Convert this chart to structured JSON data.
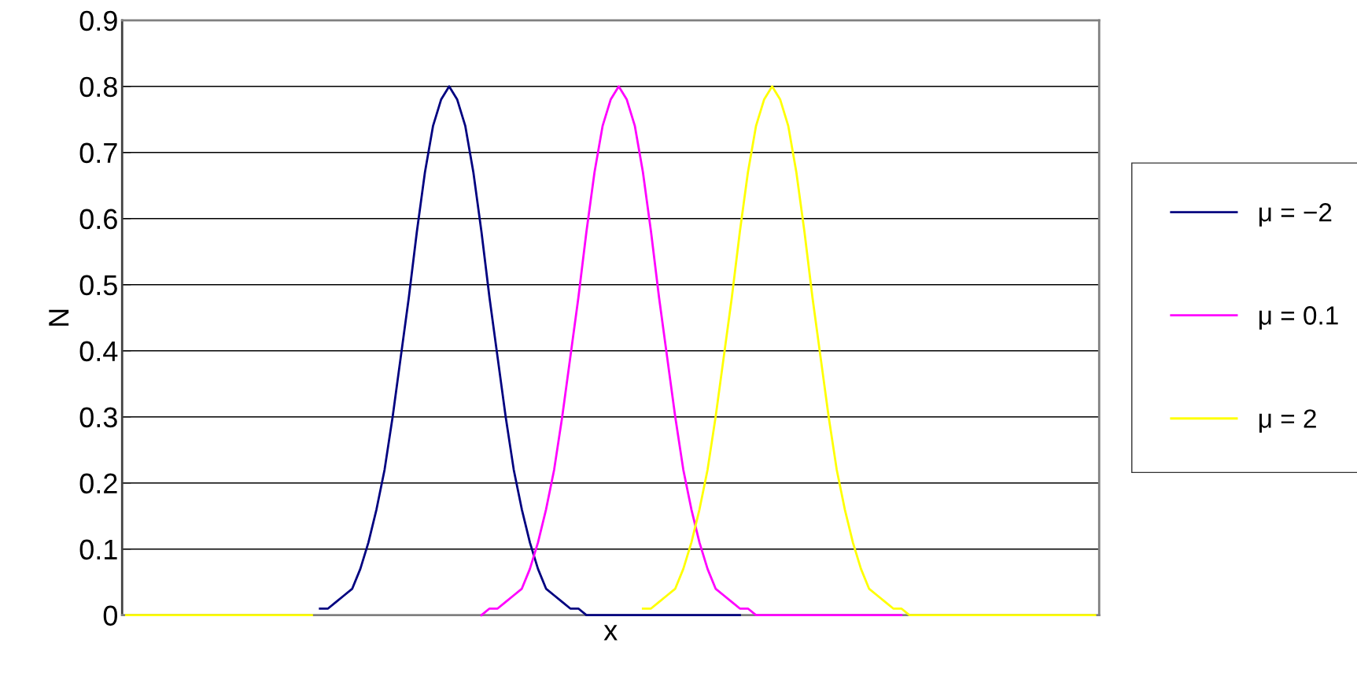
{
  "chart_data": {
    "type": "line",
    "xlabel": "x",
    "ylabel": "N",
    "ylim": [
      0,
      0.9
    ],
    "yticks": [
      0,
      0.1,
      0.2,
      0.3,
      0.4,
      0.5,
      0.6,
      0.7,
      0.8,
      0.9
    ],
    "grid": "y",
    "legend": "right",
    "tick_labels": "y",
    "marker": "none",
    "line_style": "solid",
    "categories": [
      null,
      null,
      null,
      null,
      null,
      null,
      null,
      null,
      null,
      null,
      null,
      null,
      null,
      null,
      null,
      null,
      null,
      null,
      null,
      null,
      null,
      null,
      null,
      null,
      null,
      null,
      null,
      null,
      null,
      null,
      null,
      null,
      null,
      null,
      null,
      null,
      null,
      null,
      null,
      null,
      null,
      null,
      null,
      null,
      null,
      null,
      null,
      null,
      null,
      null,
      null,
      null,
      null,
      null,
      null,
      null,
      null,
      null,
      null,
      null,
      null,
      null,
      null,
      null,
      null,
      null,
      null,
      null,
      null,
      null,
      null,
      null,
      null,
      null,
      null,
      null,
      null,
      null,
      null,
      null,
      null,
      null,
      null,
      null,
      null,
      null,
      null,
      null,
      null,
      null,
      null,
      null,
      null,
      null,
      null,
      null,
      null,
      null,
      null,
      null,
      null,
      null,
      null,
      null,
      null,
      null,
      null,
      null,
      null,
      null,
      null,
      null,
      null,
      null,
      null,
      null,
      null,
      null,
      null,
      null,
      null
    ],
    "series": [
      {
        "name": "μ = −2",
        "color": "#000080",
        "values": [
          null,
          null,
          null,
          null,
          null,
          null,
          null,
          null,
          null,
          null,
          null,
          null,
          null,
          null,
          null,
          null,
          null,
          null,
          null,
          null,
          null,
          null,
          null,
          null,
          0.01,
          0.01,
          0.02,
          0.03,
          0.04,
          0.07,
          0.11,
          0.16,
          0.22,
          0.3,
          0.39,
          0.48,
          0.58,
          0.67,
          0.74,
          0.78,
          0.8,
          0.78,
          0.74,
          0.67,
          0.58,
          0.48,
          0.39,
          0.3,
          0.22,
          0.16,
          0.11,
          0.07,
          0.04,
          0.03,
          0.02,
          0.01,
          0.01,
          0,
          0,
          0,
          0,
          0,
          0,
          0,
          0,
          0,
          0,
          0,
          0,
          0,
          0,
          0,
          0,
          0,
          0,
          0,
          0,
          null,
          null,
          null,
          null,
          null,
          null,
          null,
          null,
          null,
          null,
          null,
          null,
          null,
          null,
          null,
          null,
          null,
          null,
          null,
          null,
          null,
          null,
          null,
          null,
          null,
          null,
          null,
          null,
          null,
          null,
          null,
          null,
          null,
          null,
          null,
          null,
          null,
          null,
          null,
          null,
          null,
          null,
          null,
          null
        ]
      },
      {
        "name": "μ = 0.1",
        "color": "#ff00ff",
        "values": [
          null,
          null,
          null,
          null,
          null,
          null,
          null,
          null,
          null,
          null,
          null,
          null,
          null,
          null,
          null,
          null,
          null,
          null,
          null,
          null,
          null,
          null,
          null,
          null,
          null,
          null,
          null,
          null,
          null,
          null,
          null,
          null,
          null,
          null,
          null,
          null,
          null,
          null,
          null,
          null,
          null,
          null,
          null,
          null,
          0,
          0.01,
          0.01,
          0.02,
          0.03,
          0.04,
          0.07,
          0.11,
          0.16,
          0.22,
          0.3,
          0.39,
          0.48,
          0.58,
          0.67,
          0.74,
          0.78,
          0.8,
          0.78,
          0.74,
          0.67,
          0.58,
          0.48,
          0.39,
          0.3,
          0.22,
          0.16,
          0.11,
          0.07,
          0.04,
          0.03,
          0.02,
          0.01,
          0.01,
          0,
          0,
          0,
          0,
          0,
          0,
          0,
          0,
          0,
          0,
          0,
          0,
          0,
          0,
          0,
          0,
          0,
          0,
          0,
          null,
          null,
          null,
          null,
          null,
          null,
          null,
          null,
          null,
          null,
          null,
          null,
          null,
          null,
          null,
          null,
          null,
          null,
          null,
          null,
          null,
          null,
          null,
          null
        ]
      },
      {
        "name": "μ = 2",
        "color": "#ffff00",
        "values": [
          0,
          0,
          0,
          0,
          0,
          0,
          0,
          0,
          0,
          0,
          0,
          0,
          0,
          0,
          0,
          0,
          0,
          0,
          0,
          0,
          0,
          0,
          0,
          0,
          null,
          null,
          null,
          null,
          null,
          null,
          null,
          null,
          null,
          null,
          null,
          null,
          null,
          null,
          null,
          null,
          null,
          null,
          null,
          null,
          null,
          null,
          null,
          null,
          null,
          null,
          null,
          null,
          null,
          null,
          null,
          null,
          null,
          null,
          null,
          null,
          null,
          null,
          null,
          null,
          0.01,
          0.01,
          0.02,
          0.03,
          0.04,
          0.07,
          0.11,
          0.16,
          0.22,
          0.3,
          0.39,
          0.48,
          0.58,
          0.67,
          0.74,
          0.78,
          0.8,
          0.78,
          0.74,
          0.67,
          0.58,
          0.48,
          0.39,
          0.3,
          0.22,
          0.16,
          0.11,
          0.07,
          0.04,
          0.03,
          0.02,
          0.01,
          0.01,
          0,
          0,
          0,
          0,
          0,
          0,
          0,
          0,
          0,
          0,
          0,
          0,
          0,
          0,
          0,
          0,
          0,
          0,
          0,
          0,
          0,
          0,
          0,
          0
        ]
      }
    ]
  }
}
